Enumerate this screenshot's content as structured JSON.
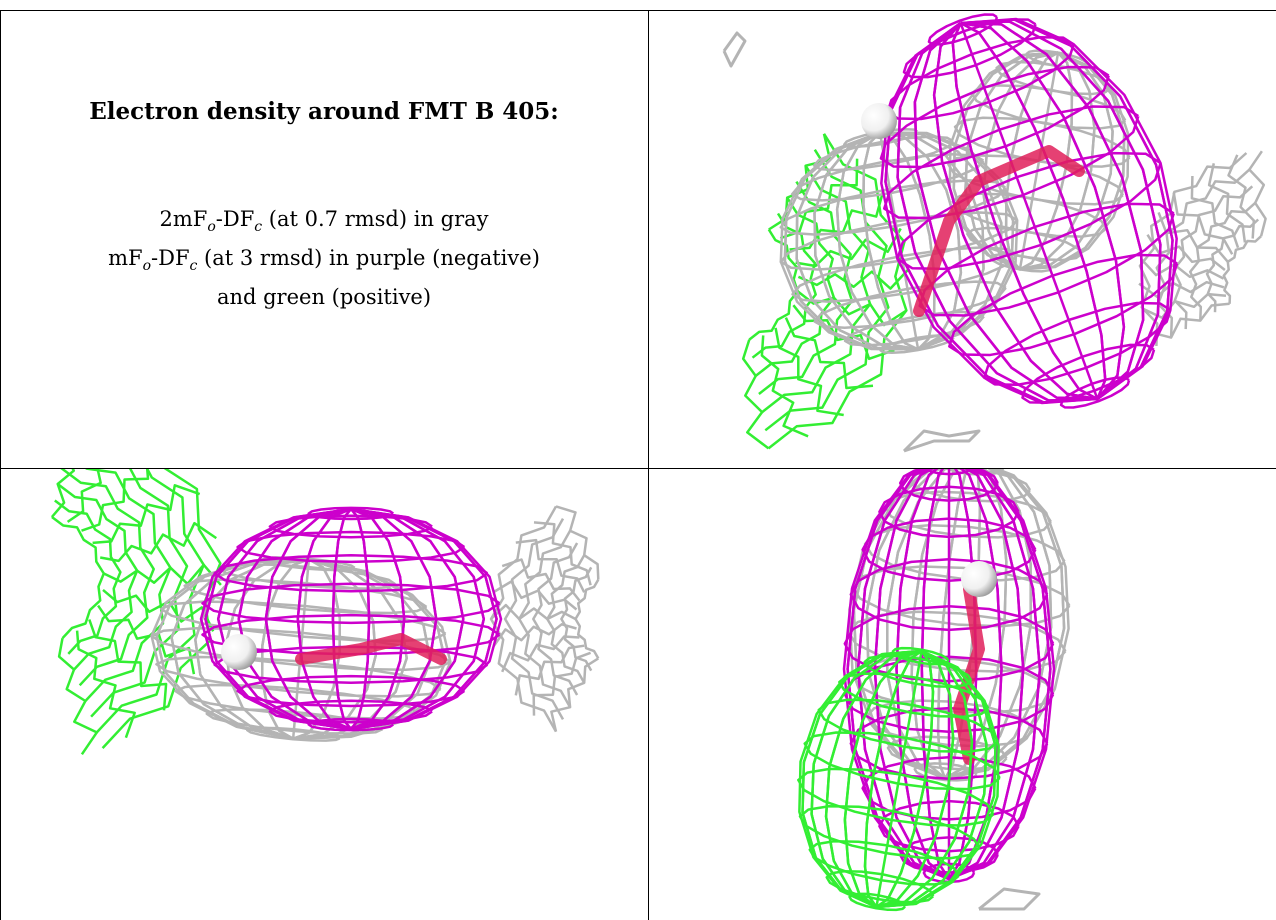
{
  "caption": {
    "title": "Electron density around FMT B 405:",
    "line1_pre": "2mF",
    "line1_sub1": "o",
    "line1_mid": "-DF",
    "line1_sub2": "c",
    "line1_post": " (at 0.7 rmsd) in gray",
    "line2_pre": "mF",
    "line2_sub1": "o",
    "line2_mid": "-DF",
    "line2_sub2": "c",
    "line2_post": " (at 3 rmsd) in purple (negative)",
    "line3": "and green (positive)"
  },
  "colors": {
    "gray_mesh": "#b4b4b4",
    "purple_mesh": "#cc00cc",
    "green_mesh": "#33ee33",
    "ligand": "#e0205a",
    "sphere": "#f0f0f0"
  }
}
